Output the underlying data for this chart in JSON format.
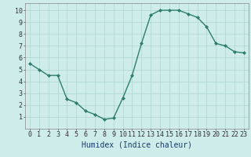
{
  "x": [
    0,
    1,
    2,
    3,
    4,
    5,
    6,
    7,
    8,
    9,
    10,
    11,
    12,
    13,
    14,
    15,
    16,
    17,
    18,
    19,
    20,
    21,
    22,
    23
  ],
  "y": [
    5.5,
    5.0,
    4.5,
    4.5,
    2.5,
    2.2,
    1.5,
    1.2,
    0.8,
    0.9,
    2.6,
    4.5,
    7.2,
    9.6,
    10.0,
    10.0,
    10.0,
    9.7,
    9.4,
    8.6,
    7.2,
    7.0,
    6.5,
    6.4
  ],
  "line_color": "#2e7d6e",
  "marker": "D",
  "marker_size": 2,
  "linewidth": 1.0,
  "bg_color": "#ceecea",
  "grid_color": "#aed4d0",
  "xlabel": "Humidex (Indice chaleur)",
  "xlim": [
    -0.5,
    23.5
  ],
  "ylim": [
    0,
    10.6
  ],
  "yticks": [
    1,
    2,
    3,
    4,
    5,
    6,
    7,
    8,
    9,
    10
  ],
  "xticks": [
    0,
    1,
    2,
    3,
    4,
    5,
    6,
    7,
    8,
    9,
    10,
    11,
    12,
    13,
    14,
    15,
    16,
    17,
    18,
    19,
    20,
    21,
    22,
    23
  ],
  "xlabel_fontsize": 7,
  "tick_fontsize": 6,
  "xlabel_color": "#1a3a6b"
}
